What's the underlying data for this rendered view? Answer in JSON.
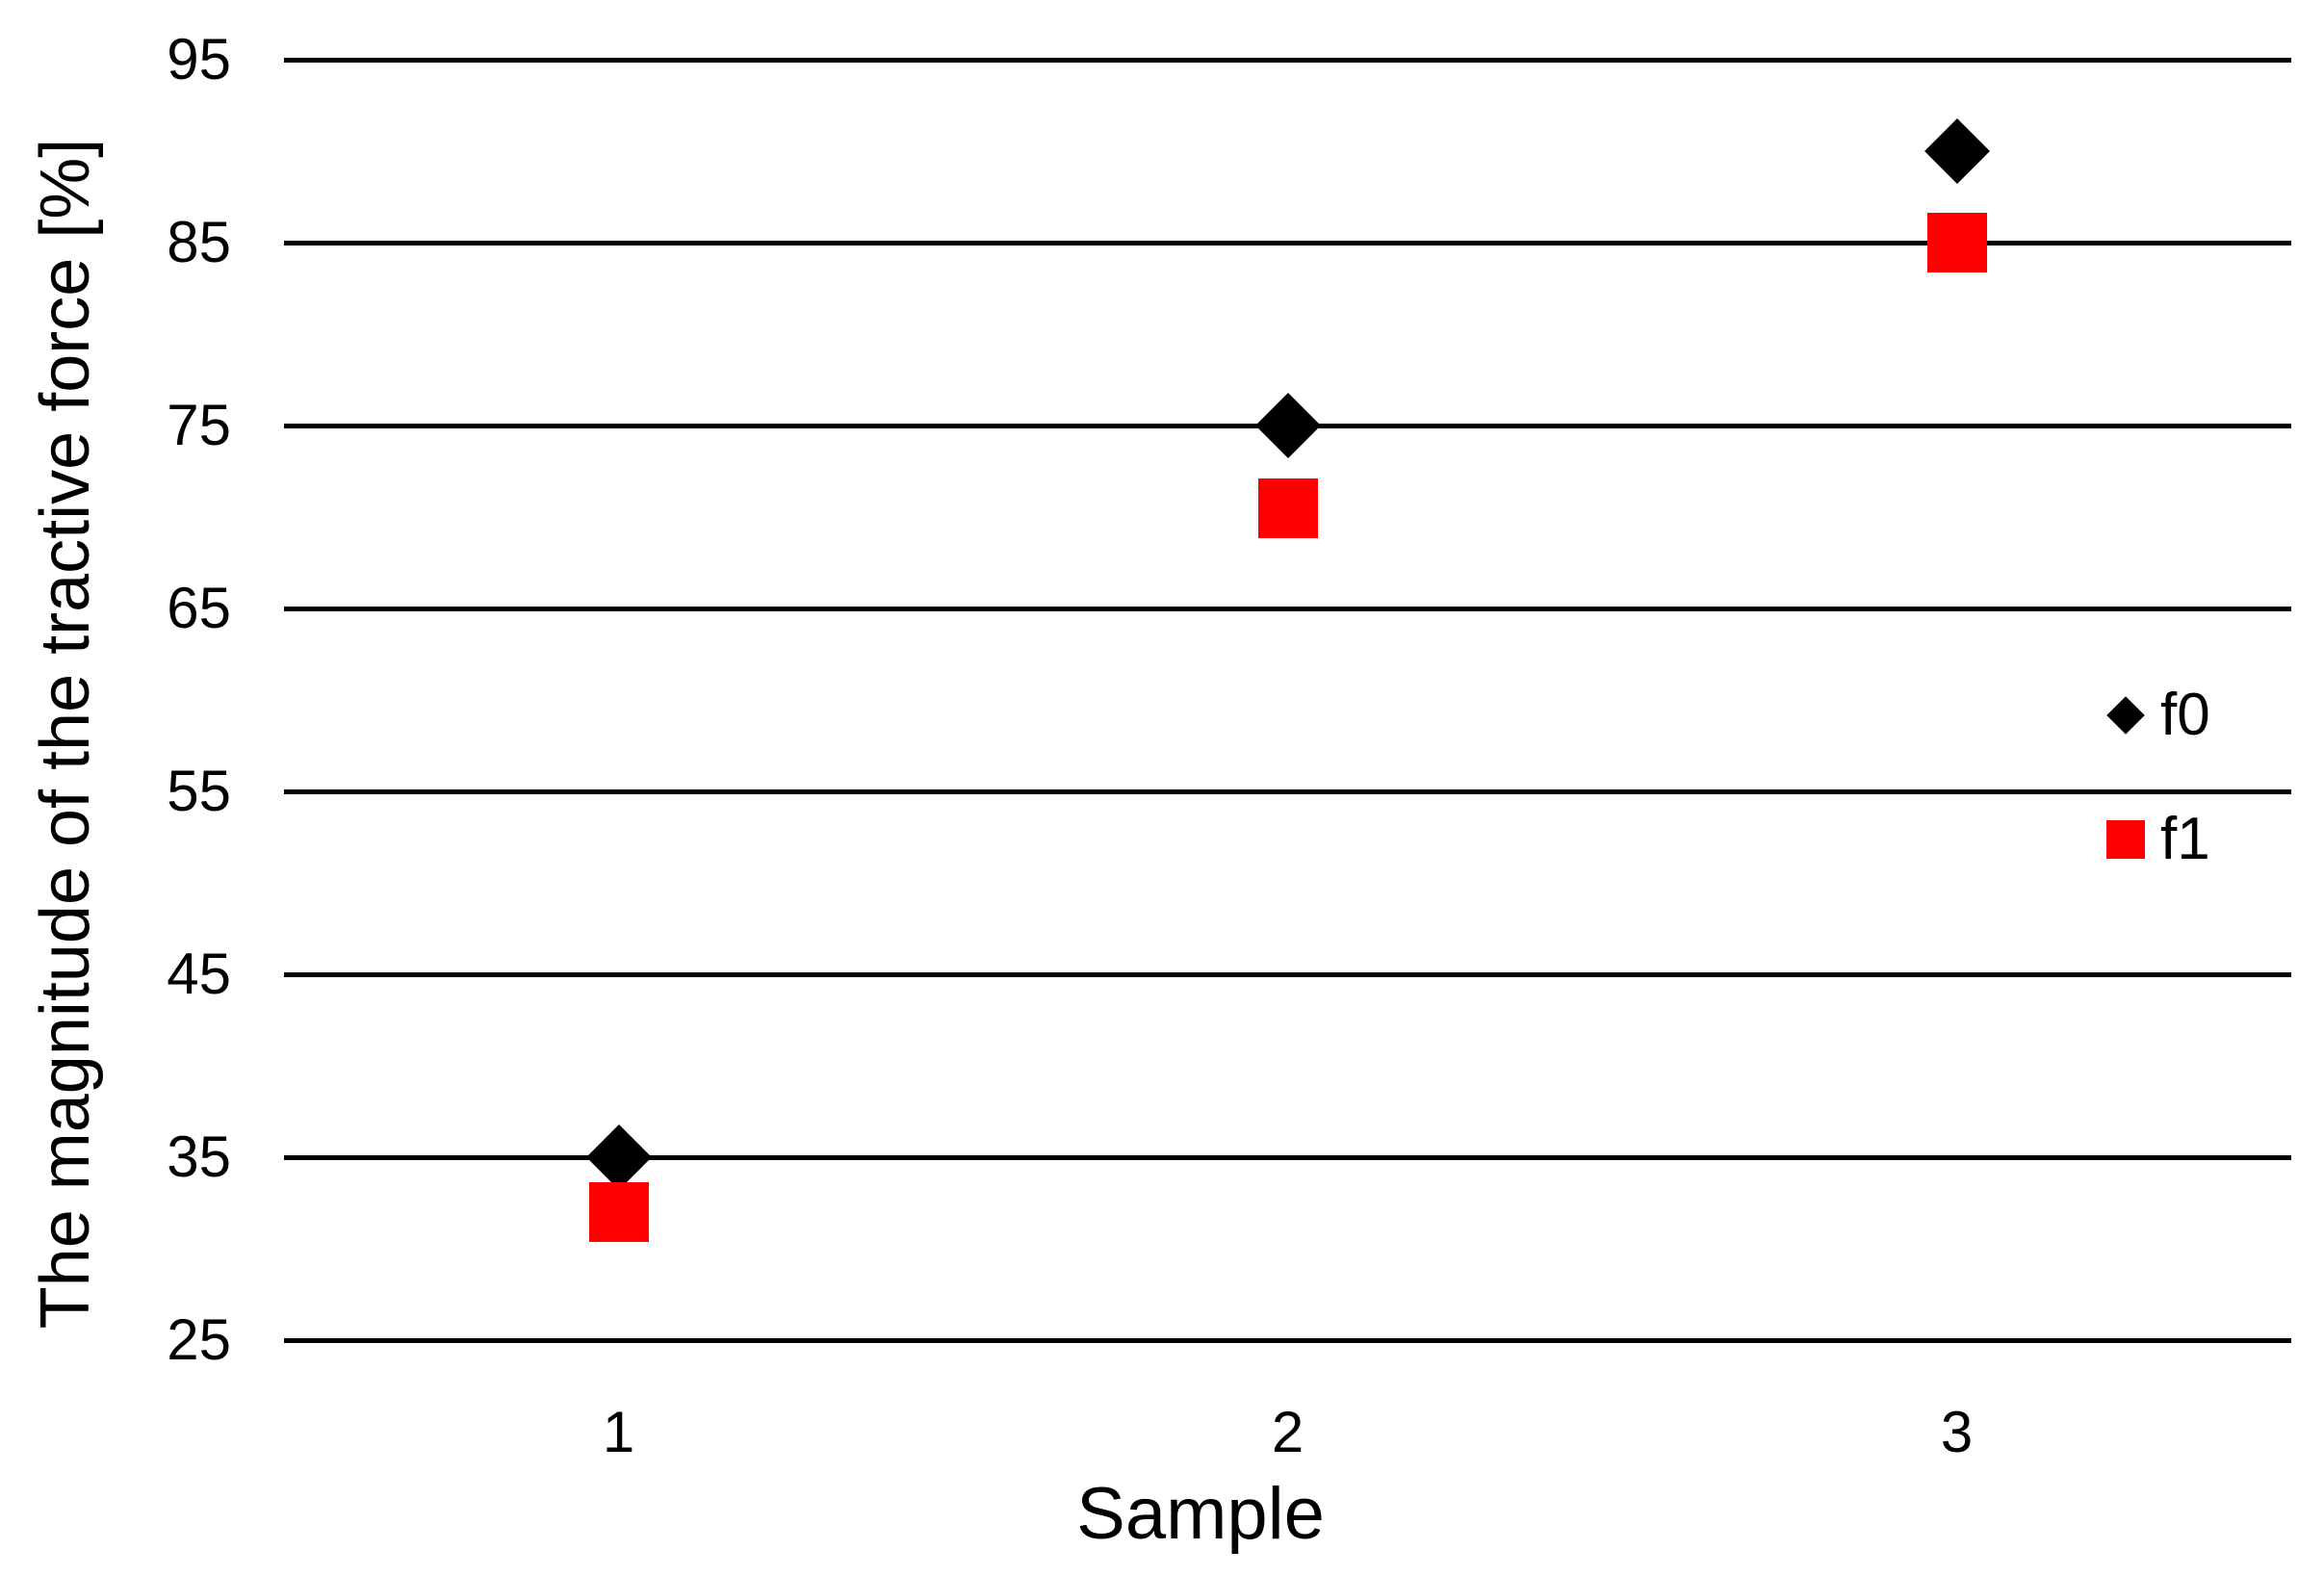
{
  "chart_data": {
    "type": "scatter",
    "title": "",
    "xlabel": "Sample",
    "ylabel": "The magnitude of the tractive force [%]",
    "x": [
      1,
      2,
      3
    ],
    "xticks": [
      "1",
      "2",
      "3"
    ],
    "series": [
      {
        "name": "f0",
        "marker": "diamond",
        "color": "#000000",
        "values": [
          35,
          75,
          90
        ]
      },
      {
        "name": "f1",
        "marker": "square",
        "color": "#FF0000",
        "values": [
          32,
          70.5,
          85
        ]
      }
    ],
    "ylim": [
      25,
      95
    ],
    "yticks": [
      95,
      85,
      75,
      65,
      55,
      45,
      35,
      25
    ],
    "grid": "horizontal",
    "gridline_color": "#000000",
    "background_color": "#FFFFFF",
    "text_color": "#000000",
    "legend": {
      "position": "right",
      "entries": [
        "f0",
        "f1"
      ]
    }
  }
}
